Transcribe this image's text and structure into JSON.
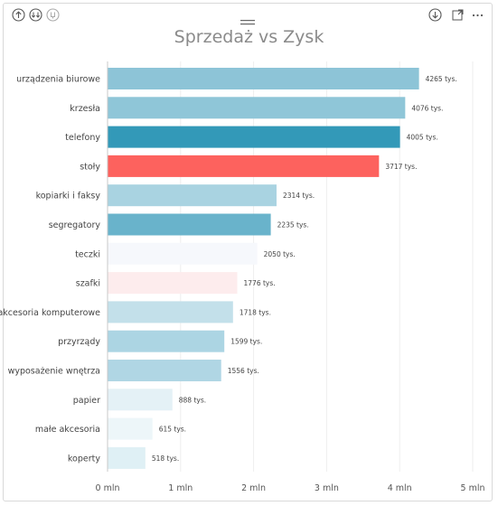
{
  "toolbar": {
    "icons": [
      "arrow-up-circle-icon",
      "double-arrow-down-circle-icon",
      "drill-icon",
      "drag-grip-icon",
      "arrow-down-circle-icon",
      "focus-mode-icon",
      "more-options-icon"
    ]
  },
  "chart_data": {
    "type": "bar",
    "orientation": "horizontal",
    "title": "Sprzedaż vs Zysk",
    "categories": [
      "urządzenia biurowe",
      "krzesła",
      "telefony",
      "stoły",
      "kopiarki i faksy",
      "segregatory",
      "teczki",
      "szafki",
      "akcesoria komputerowe",
      "przyrządy",
      "wyposażenie wnętrza",
      "papier",
      "małe akcesoria",
      "koperty"
    ],
    "values": [
      4265,
      4076,
      4005,
      3717,
      2314,
      2235,
      2050,
      1776,
      1718,
      1599,
      1556,
      888,
      615,
      518
    ],
    "value_labels": [
      "4265 tys.",
      "4076 tys.",
      "4005 tys.",
      "3717 tys.",
      "2314 tys.",
      "2235 tys.",
      "2050 tys.",
      "1776 tys.",
      "1718 tys.",
      "1599 tys.",
      "1556 tys.",
      "888 tys.",
      "615 tys.",
      "518 tys."
    ],
    "colors": [
      "#8dc4d7",
      "#8fc6d8",
      "#3399b8",
      "#fd625e",
      "#a9d3e1",
      "#69b3cb",
      "#f6f8fc",
      "#fdeced",
      "#c3e0ea",
      "#acd5e3",
      "#b0d6e4",
      "#e4f1f6",
      "#edf6f9",
      "#dff0f5"
    ],
    "x_ticks": [
      0,
      1000,
      2000,
      3000,
      4000,
      5000
    ],
    "x_tick_labels": [
      "0 mln",
      "1 mln",
      "2 mln",
      "3 mln",
      "4 mln",
      "5 mln"
    ],
    "xlim": [
      0,
      5000
    ],
    "unit": "tys.",
    "grid": true
  }
}
